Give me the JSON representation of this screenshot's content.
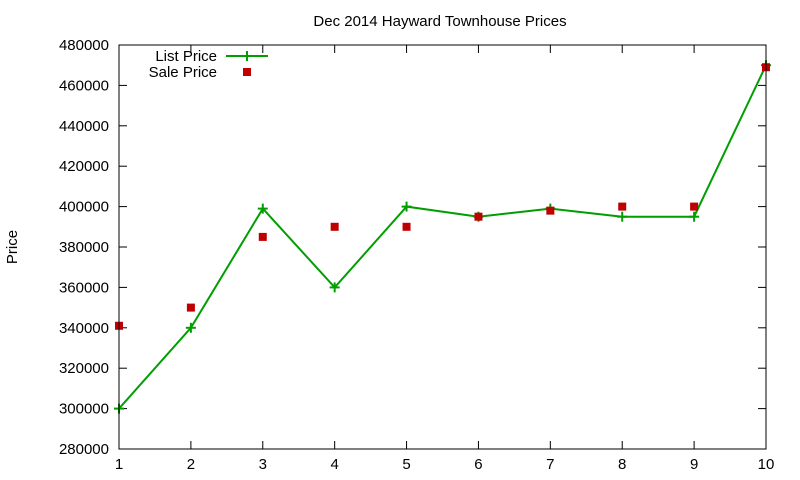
{
  "chart_data": {
    "type": "line",
    "title": "Dec 2014 Hayward Townhouse Prices",
    "xlabel": "",
    "ylabel": "Price",
    "xlim": [
      1,
      10
    ],
    "ylim": [
      280000,
      480000
    ],
    "xticks": [
      1,
      2,
      3,
      4,
      5,
      6,
      7,
      8,
      9,
      10
    ],
    "yticks": [
      280000,
      300000,
      320000,
      340000,
      360000,
      380000,
      400000,
      420000,
      440000,
      460000,
      480000
    ],
    "legend_position": "top-left",
    "grid": false,
    "series": [
      {
        "name": "List Price",
        "style": "line-with-plus-markers",
        "color": "#009e00",
        "points": [
          {
            "x": 1,
            "y": 300000
          },
          {
            "x": 2,
            "y": 340000
          },
          {
            "x": 3,
            "y": 399000
          },
          {
            "x": 4,
            "y": 360000
          },
          {
            "x": 5,
            "y": 400000
          },
          {
            "x": 6,
            "y": 395000
          },
          {
            "x": 7,
            "y": 399000
          },
          {
            "x": 8,
            "y": 395000
          },
          {
            "x": 9,
            "y": 395000
          },
          {
            "x": 10,
            "y": 470000
          }
        ]
      },
      {
        "name": "Sale Price",
        "style": "square-markers",
        "color": "#c00000",
        "points": [
          {
            "x": 1,
            "y": 341000
          },
          {
            "x": 2,
            "y": 350000
          },
          {
            "x": 3,
            "y": 385000
          },
          {
            "x": 4,
            "y": 390000
          },
          {
            "x": 5,
            "y": 390000
          },
          {
            "x": 6,
            "y": 395000
          },
          {
            "x": 7,
            "y": 398000
          },
          {
            "x": 8,
            "y": 400000
          },
          {
            "x": 9,
            "y": 400000
          },
          {
            "x": 10,
            "y": 469000
          }
        ]
      }
    ]
  }
}
